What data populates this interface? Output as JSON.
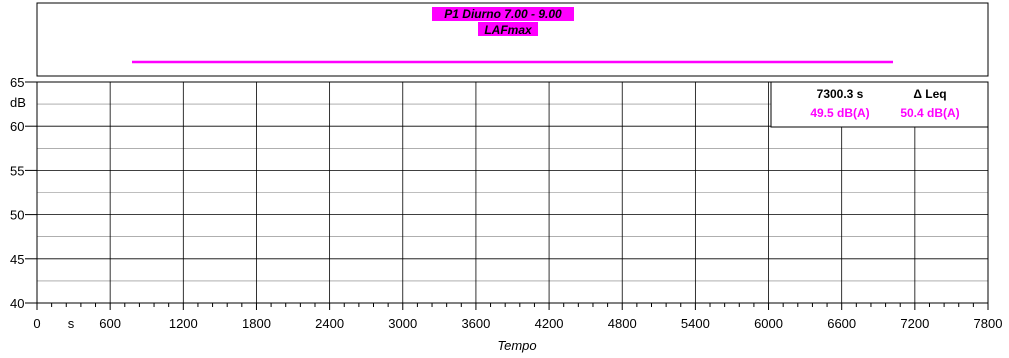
{
  "chart_data": {
    "type": "line",
    "title_lines": [
      "P1 Diurno 7.00 - 9.00",
      "LAFmax"
    ],
    "legend_color": "#ff00ff",
    "ylabel": "dB",
    "xlabel": "Tempo",
    "x_unit_label": "s",
    "ylim": [
      40,
      65
    ],
    "xlim": [
      0,
      7800
    ],
    "y_ticks": [
      40,
      45,
      50,
      55,
      60,
      65
    ],
    "x_ticks": [
      0,
      600,
      1200,
      1800,
      2400,
      3000,
      3600,
      4200,
      4800,
      5400,
      6000,
      6600,
      7200,
      7800
    ],
    "grid": true,
    "series": [
      {
        "name": "LAFmax",
        "color": "#ff00ff",
        "x": [],
        "y": []
      }
    ],
    "cursor_box": {
      "time_label": "7300.3 s",
      "delta_label": "Δ Leq",
      "value_1": "49.5 dB(A)",
      "value_2": "50.4 dB(A)",
      "value_color": "#ff00ff"
    }
  }
}
